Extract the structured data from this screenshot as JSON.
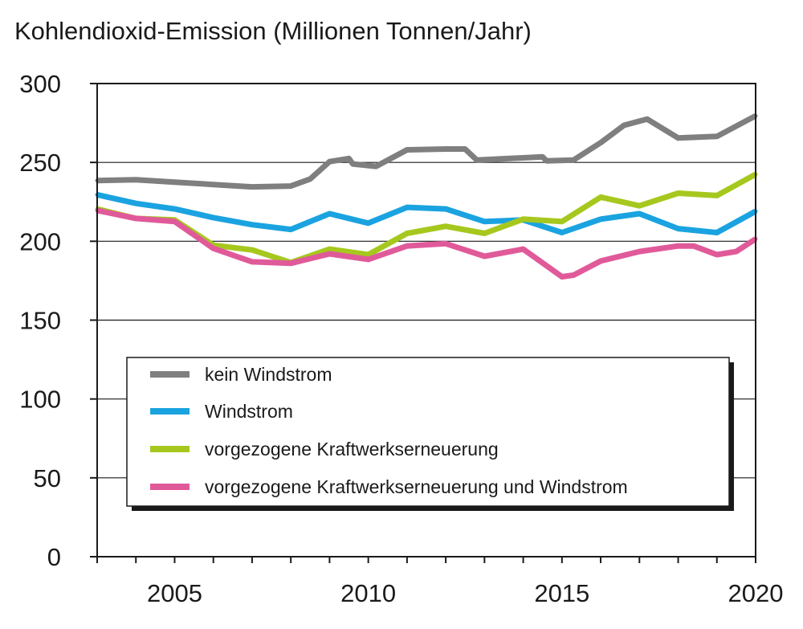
{
  "chart_data": {
    "type": "line",
    "title": "Kohlendioxid-Emission (Millionen Tonnen/Jahr)",
    "xlabel": "",
    "ylabel": "",
    "xlim": [
      2003,
      2020
    ],
    "ylim": [
      0,
      300
    ],
    "yticks": [
      "0",
      "50",
      "100",
      "150",
      "200",
      "250",
      "300"
    ],
    "xticks": [
      "2005",
      "2010",
      "2015",
      "2020"
    ],
    "grid": "horizontal",
    "legend_position": "lower-center",
    "series": [
      {
        "name": "kein Windstrom",
        "color": "#7f7f7f",
        "points": [
          [
            2003,
            238.5
          ],
          [
            2004,
            239
          ],
          [
            2005,
            237.5
          ],
          [
            2006,
            236
          ],
          [
            2007,
            234.5
          ],
          [
            2008,
            235
          ],
          [
            2008.5,
            239.5
          ],
          [
            2009,
            250.5
          ],
          [
            2009.5,
            252.5
          ],
          [
            2009.6,
            249
          ],
          [
            2010.2,
            247.5
          ],
          [
            2011,
            258
          ],
          [
            2012,
            258.5
          ],
          [
            2012.5,
            258.5
          ],
          [
            2012.8,
            251.5
          ],
          [
            2014.5,
            253.5
          ],
          [
            2014.6,
            251
          ],
          [
            2015.3,
            251.5
          ],
          [
            2016,
            262.5
          ],
          [
            2016.6,
            273.5
          ],
          [
            2017.2,
            277.5
          ],
          [
            2018,
            265.5
          ],
          [
            2018.5,
            266
          ],
          [
            2019,
            266.5
          ],
          [
            2020,
            279.5
          ]
        ]
      },
      {
        "name": "Windstrom",
        "color": "#1aa3e0",
        "points": [
          [
            2003,
            229.5
          ],
          [
            2004,
            224
          ],
          [
            2005,
            220.5
          ],
          [
            2006,
            215
          ],
          [
            2007,
            210.5
          ],
          [
            2008,
            207.5
          ],
          [
            2009,
            217.5
          ],
          [
            2010,
            211.5
          ],
          [
            2011,
            221.5
          ],
          [
            2012,
            220.5
          ],
          [
            2013,
            212.5
          ],
          [
            2014,
            213.5
          ],
          [
            2015,
            205.5
          ],
          [
            2016,
            214
          ],
          [
            2017,
            217.5
          ],
          [
            2018,
            208
          ],
          [
            2019,
            205.5
          ],
          [
            2020,
            219
          ]
        ]
      },
      {
        "name": "vorgezogene Kraftwerkserneuerung",
        "color": "#a6c81e",
        "points": [
          [
            2003,
            220.5
          ],
          [
            2004,
            214.5
          ],
          [
            2005,
            213.5
          ],
          [
            2006,
            197.5
          ],
          [
            2007,
            194.5
          ],
          [
            2008,
            186.5
          ],
          [
            2009,
            195
          ],
          [
            2010,
            191.5
          ],
          [
            2011,
            205
          ],
          [
            2012,
            209.5
          ],
          [
            2013,
            205
          ],
          [
            2014,
            214
          ],
          [
            2015,
            212.5
          ],
          [
            2016,
            228
          ],
          [
            2017,
            222.5
          ],
          [
            2018,
            230.5
          ],
          [
            2019,
            229
          ],
          [
            2020,
            242.5
          ]
        ]
      },
      {
        "name": "vorgezogene Kraftwerkserneuerung und Windstrom",
        "color": "#e05a9a",
        "points": [
          [
            2003,
            219.5
          ],
          [
            2004,
            214.5
          ],
          [
            2005,
            212.5
          ],
          [
            2006,
            195.5
          ],
          [
            2007,
            187
          ],
          [
            2008,
            186
          ],
          [
            2009,
            192
          ],
          [
            2010,
            188.5
          ],
          [
            2011,
            197
          ],
          [
            2012,
            198.5
          ],
          [
            2013,
            190.5
          ],
          [
            2014,
            195
          ],
          [
            2015,
            177.5
          ],
          [
            2015.3,
            178.5
          ],
          [
            2016,
            187.5
          ],
          [
            2017,
            193.5
          ],
          [
            2018,
            197
          ],
          [
            2018.4,
            197
          ],
          [
            2019,
            191.5
          ],
          [
            2019.5,
            193.5
          ],
          [
            2020,
            201.5
          ]
        ]
      }
    ]
  }
}
